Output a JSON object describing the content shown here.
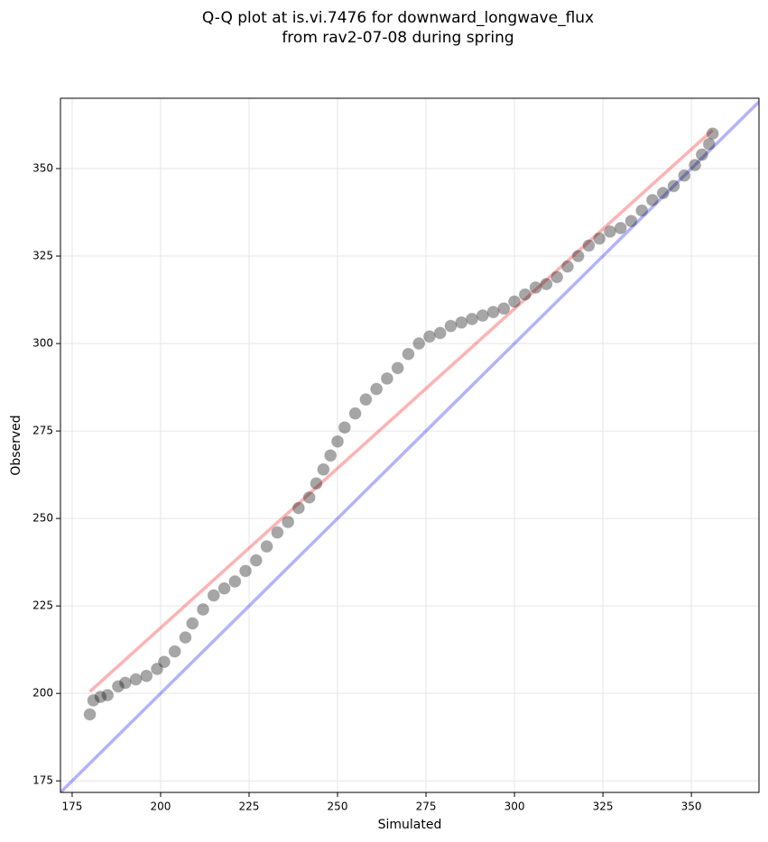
{
  "chart_data": {
    "type": "scatter",
    "title": [
      "Q-Q plot at is.vi.7476 for downward_longwave_flux",
      "from rav2-07-08 during spring"
    ],
    "xlabel": "Simulated",
    "ylabel": "Observed",
    "xlim": [
      171.7,
      369.1
    ],
    "ylim": [
      171.7,
      370.1
    ],
    "xticks": [
      175,
      200,
      225,
      250,
      275,
      300,
      325,
      350
    ],
    "yticks": [
      175,
      200,
      225,
      250,
      275,
      300,
      325,
      350
    ],
    "grid": true,
    "color": "#000000",
    "x": [
      180,
      181,
      183,
      185,
      188,
      190,
      193,
      196,
      199,
      201,
      204,
      207,
      209,
      212,
      215,
      218,
      221,
      224,
      227,
      230,
      233,
      236,
      239,
      242,
      244,
      246,
      248,
      250,
      252,
      255,
      258,
      261,
      264,
      267,
      270,
      273,
      276,
      279,
      282,
      285,
      288,
      291,
      294,
      297,
      300,
      303,
      306,
      309,
      312,
      315,
      318,
      321,
      324,
      327,
      330,
      333,
      336,
      339,
      342,
      345,
      348,
      351,
      353,
      355,
      356
    ],
    "values": [
      194,
      198,
      199,
      199.5,
      202,
      203,
      204,
      205,
      207,
      209,
      212,
      216,
      220,
      224,
      228,
      230,
      232,
      235,
      238,
      242,
      246,
      249,
      253,
      256,
      260,
      264,
      268,
      272,
      276,
      280,
      284,
      287,
      290,
      293,
      297,
      300,
      302,
      303,
      305,
      306,
      307,
      308,
      309,
      310,
      312,
      314,
      316,
      317,
      319,
      322,
      325,
      328,
      330,
      332,
      333,
      335,
      338,
      341,
      343,
      345,
      348,
      351,
      354,
      357,
      360
    ],
    "lines": [
      {
        "color": "#0000ff",
        "x": [
          171.7,
          369.1
        ],
        "values": [
          171.7,
          369.1
        ]
      },
      {
        "color": "#ff0000",
        "x": [
          180,
          356
        ],
        "values": [
          200.5,
          361
        ]
      }
    ]
  }
}
